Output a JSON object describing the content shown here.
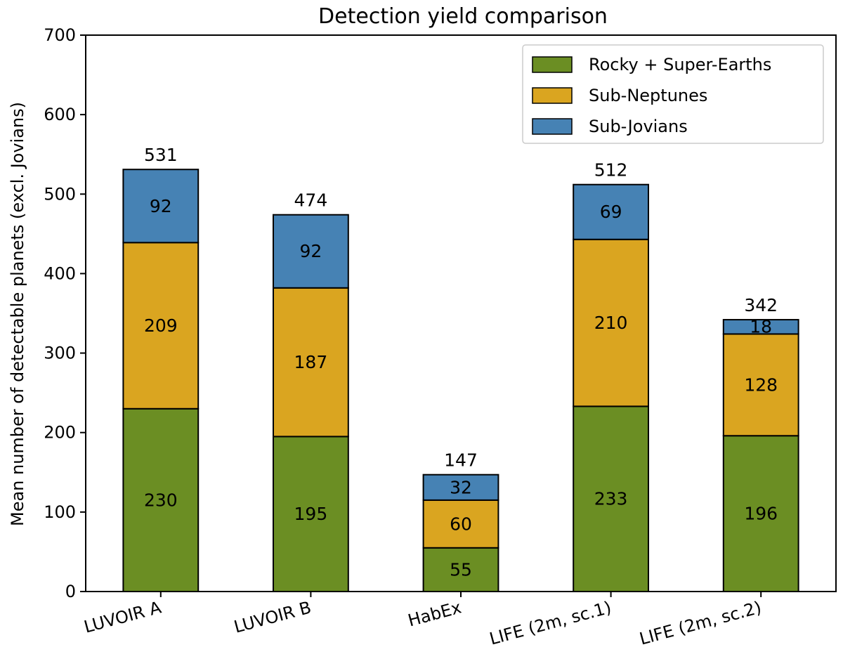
{
  "chart_data": {
    "type": "bar",
    "stacked": true,
    "title": "Detection yield comparison",
    "xlabel": "",
    "ylabel": "Mean number of detectable planets (excl. Jovians)",
    "ylim": [
      0,
      700
    ],
    "yticks": [
      0,
      100,
      200,
      300,
      400,
      500,
      600,
      700
    ],
    "categories": [
      "LUVOIR A",
      "LUVOIR B",
      "HabEx",
      "LIFE (2m, sc.1)",
      "LIFE (2m, sc.2)"
    ],
    "series": [
      {
        "name": "Rocky + Super-Earths",
        "color": "#6b8e23",
        "values": [
          230,
          195,
          55,
          233,
          196
        ]
      },
      {
        "name": "Sub-Neptunes",
        "color": "#daa520",
        "values": [
          209,
          187,
          60,
          210,
          128
        ]
      },
      {
        "name": "Sub-Jovians",
        "color": "#4682b4",
        "values": [
          92,
          92,
          32,
          69,
          18
        ]
      }
    ],
    "totals": [
      531,
      474,
      147,
      512,
      342
    ],
    "grid": false,
    "legend_position": "top-right",
    "xtick_rotation_deg": -15
  }
}
